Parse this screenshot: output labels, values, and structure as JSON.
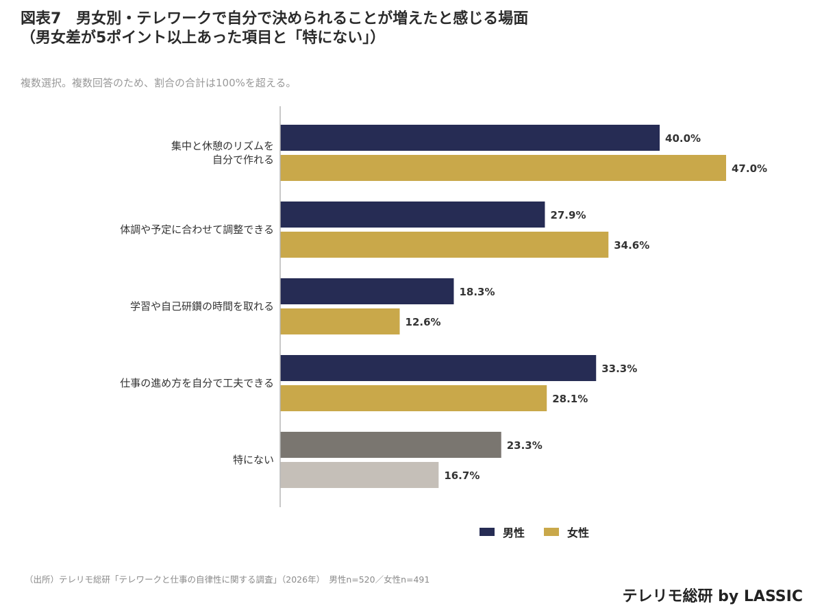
{
  "header": {
    "title_line1": "図表7　男女別・テレワークで自分で決められることが増えたと感じる場面",
    "title_line2": "（男女差が5ポイント以上あった項目と「特にない」）",
    "subtitle": "複数選択。複数回答のため、割合の合計は100%を超える。"
  },
  "chart_data": {
    "type": "bar",
    "orientation": "horizontal",
    "categories": [
      [
        "集中と休憩のリズムを",
        "自分で作れる"
      ],
      [
        "体調や予定に合わせて調整できる"
      ],
      [
        "学習や自己研鑽の時間を取れる"
      ],
      [
        "仕事の進め方を自分で工夫できる"
      ],
      [
        "特にない"
      ]
    ],
    "series": [
      {
        "name": "男性",
        "values": [
          40.0,
          27.9,
          18.3,
          33.3,
          23.3
        ]
      },
      {
        "name": "女性",
        "values": [
          47.0,
          34.6,
          12.6,
          28.1,
          16.7
        ]
      }
    ],
    "value_format": "%",
    "xlim": [
      0,
      50
    ],
    "grid": false,
    "legend_position": "bottom",
    "colors": {
      "series": [
        "#262c54",
        "#c9a84a"
      ],
      "last_category": [
        "#7a7670",
        "#c5bfb8"
      ]
    }
  },
  "legend": {
    "male": "男性",
    "female": "女性"
  },
  "footer": {
    "source": "（出所）テレリモ総研「テレワークと仕事の自律性に関する調査」（2026年）　男性n=520／女性n=491"
  },
  "brand": "テレリモ総研 by LASSIC"
}
